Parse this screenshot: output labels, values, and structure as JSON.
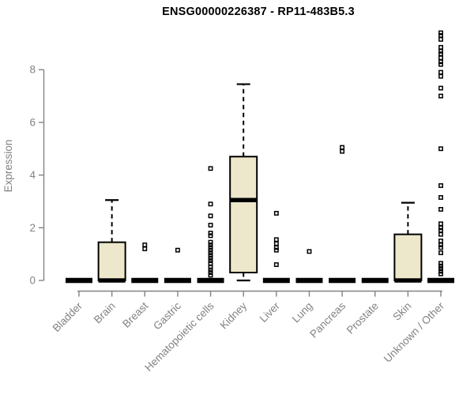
{
  "chart_data": {
    "type": "boxplot",
    "title": "ENSG00000226387 - RP11-483B5.3",
    "ylabel": "Expression",
    "xlabel": "",
    "ylim": [
      0,
      9.6
    ],
    "yticks": [
      0,
      2,
      4,
      6,
      8
    ],
    "grid": false,
    "legend": false,
    "box_fill": "#EDE7CB",
    "box_border": "#000000",
    "axis_color": "#828282",
    "categories": [
      "Bladder",
      "Brain",
      "Breast",
      "Gastric",
      "Hematopoietic cells",
      "Kidney",
      "Liver",
      "Lung",
      "Pancreas",
      "Prostate",
      "Skin",
      "Unknown / Other"
    ],
    "series": [
      {
        "category": "Bladder",
        "q1": 0,
        "median": 0,
        "q3": 0,
        "whisker_low": 0,
        "whisker_high": 0,
        "outliers": []
      },
      {
        "category": "Brain",
        "q1": 0,
        "median": 0,
        "q3": 1.45,
        "whisker_low": 0,
        "whisker_high": 3.05,
        "outliers": []
      },
      {
        "category": "Breast",
        "q1": 0,
        "median": 0,
        "q3": 0,
        "whisker_low": 0,
        "whisker_high": 0,
        "outliers": [
          1.35,
          1.2
        ]
      },
      {
        "category": "Gastric",
        "q1": 0,
        "median": 0,
        "q3": 0,
        "whisker_low": 0,
        "whisker_high": 0,
        "outliers": [
          1.15
        ]
      },
      {
        "category": "Hematopoietic cells",
        "q1": 0,
        "median": 0,
        "q3": 0,
        "whisker_low": 0,
        "whisker_high": 0,
        "outliers": [
          4.25,
          2.9,
          2.45,
          2.1,
          1.8,
          1.7,
          1.45,
          1.35,
          1.25,
          1.15,
          1.05,
          0.95,
          0.85,
          0.75,
          0.65,
          0.5,
          0.4,
          0.3,
          0.2
        ]
      },
      {
        "category": "Kidney",
        "q1": 0.3,
        "median": 3.05,
        "q3": 4.7,
        "whisker_low": 0,
        "whisker_high": 7.45,
        "outliers": []
      },
      {
        "category": "Liver",
        "q1": 0,
        "median": 0,
        "q3": 0,
        "whisker_low": 0,
        "whisker_high": 0,
        "outliers": [
          2.55,
          1.55,
          1.4,
          1.25,
          1.15,
          0.6
        ]
      },
      {
        "category": "Lung",
        "q1": 0,
        "median": 0,
        "q3": 0,
        "whisker_low": 0,
        "whisker_high": 0,
        "outliers": [
          1.1
        ]
      },
      {
        "category": "Pancreas",
        "q1": 0,
        "median": 0,
        "q3": 0,
        "whisker_low": 0,
        "whisker_high": 0,
        "outliers": [
          5.05,
          4.9
        ]
      },
      {
        "category": "Prostate",
        "q1": 0,
        "median": 0,
        "q3": 0,
        "whisker_low": 0,
        "whisker_high": 0,
        "outliers": []
      },
      {
        "category": "Skin",
        "q1": 0,
        "median": 0,
        "q3": 1.75,
        "whisker_low": 0,
        "whisker_high": 2.95,
        "outliers": []
      },
      {
        "category": "Unknown / Other",
        "q1": 0,
        "median": 0,
        "q3": 0,
        "whisker_low": 0,
        "whisker_high": 0,
        "outliers": [
          9.4,
          9.3,
          9.15,
          8.85,
          8.7,
          8.6,
          8.45,
          8.3,
          8.2,
          7.9,
          7.75,
          7.3,
          7.0,
          5.0,
          3.6,
          3.15,
          2.7,
          2.15,
          2.0,
          1.9,
          1.75,
          1.5,
          1.35,
          1.25,
          1.05,
          0.65,
          0.55,
          0.45,
          0.35,
          0.25
        ]
      }
    ]
  }
}
